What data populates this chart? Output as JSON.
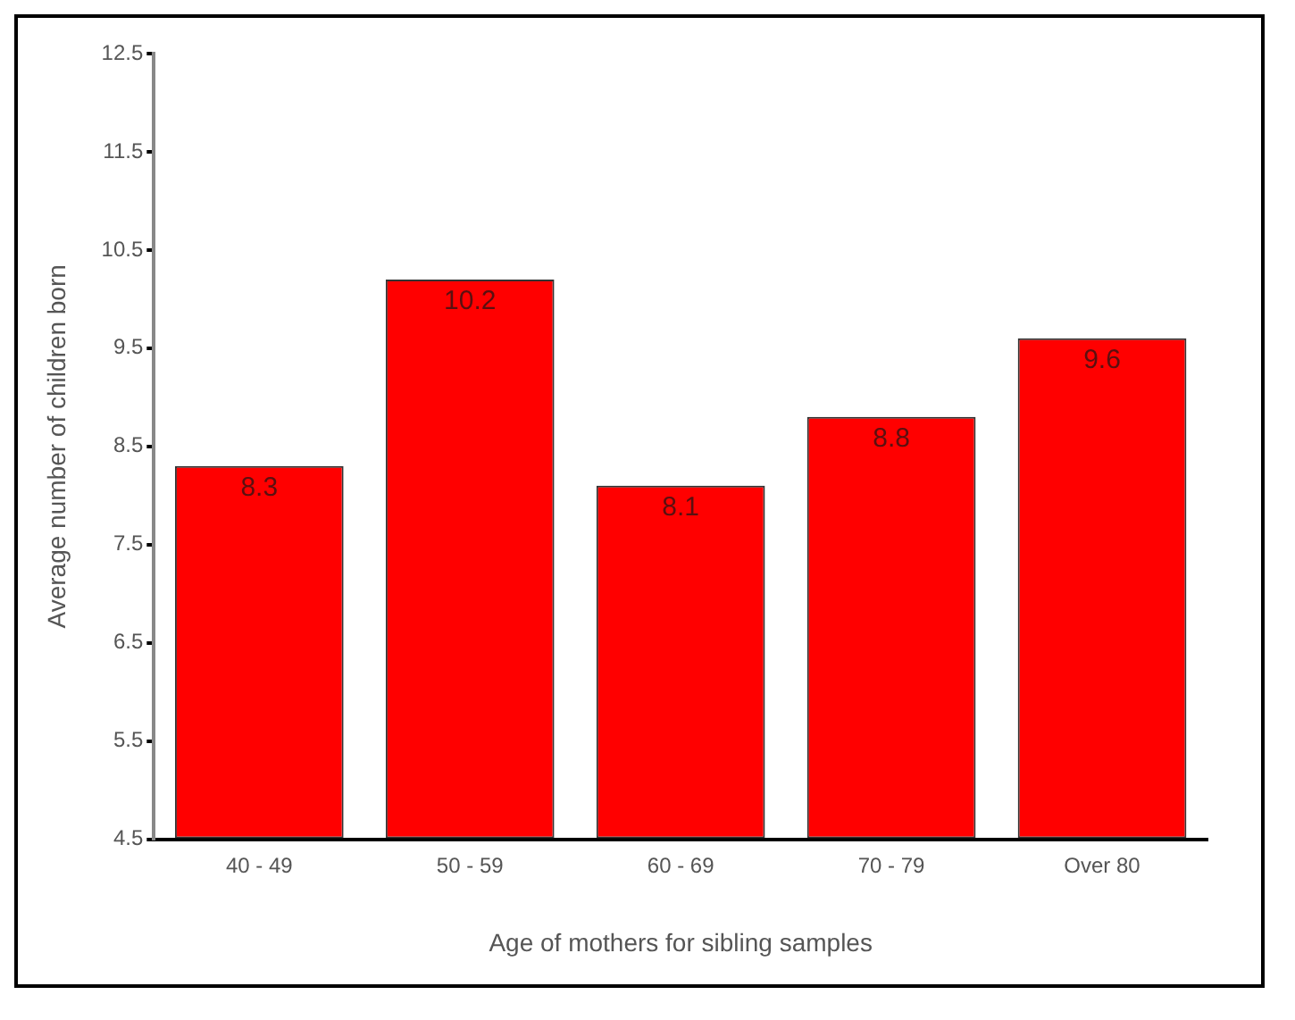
{
  "chart_data": {
    "type": "bar",
    "xlabel": "Age of mothers for sibling samples",
    "ylabel": "Average number of children born",
    "categories": [
      "40 - 49",
      "50 - 59",
      "60 - 69",
      "70 - 79",
      "Over 80"
    ],
    "values": [
      8.3,
      10.2,
      8.1,
      8.8,
      9.6
    ],
    "color": "#ff0000",
    "ylim": [
      4.5,
      12.5
    ],
    "yticks": [
      4.5,
      5.5,
      6.5,
      7.5,
      8.5,
      9.5,
      10.5,
      11.5,
      12.5
    ],
    "data_labels": true,
    "grid": false,
    "legend": false
  }
}
